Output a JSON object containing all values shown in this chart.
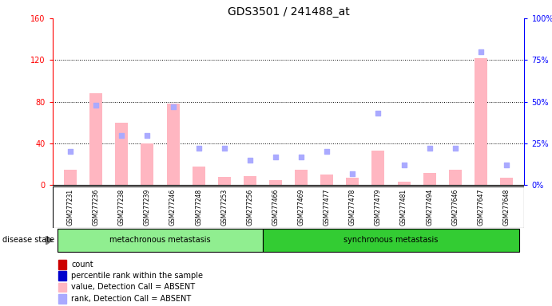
{
  "title": "GDS3501 / 241488_at",
  "samples": [
    "GSM277231",
    "GSM277236",
    "GSM277238",
    "GSM277239",
    "GSM277246",
    "GSM277248",
    "GSM277253",
    "GSM277256",
    "GSM277466",
    "GSM277469",
    "GSM277477",
    "GSM277478",
    "GSM277479",
    "GSM277481",
    "GSM277494",
    "GSM277646",
    "GSM277647",
    "GSM277648"
  ],
  "values": [
    15,
    88,
    60,
    40,
    78,
    18,
    8,
    9,
    5,
    15,
    10,
    7,
    33,
    3,
    12,
    15,
    122,
    7
  ],
  "ranks_pct": [
    20,
    48,
    30,
    30,
    47,
    22,
    22,
    15,
    17,
    17,
    20,
    7,
    43,
    12,
    22,
    22,
    80,
    12
  ],
  "ylim_left": [
    0,
    160
  ],
  "ylim_right": [
    0,
    100
  ],
  "yticks_left": [
    0,
    40,
    80,
    120,
    160
  ],
  "yticks_right": [
    0,
    25,
    50,
    75,
    100
  ],
  "ytick_labels_left": [
    "0",
    "40",
    "80",
    "120",
    "160"
  ],
  "ytick_labels_right": [
    "0%",
    "25%",
    "50%",
    "75%",
    "100%"
  ],
  "groups": [
    {
      "label": "metachronous metastasis",
      "start": 0,
      "end": 8,
      "color": "#90ee90"
    },
    {
      "label": "synchronous metastasis",
      "start": 8,
      "end": 18,
      "color": "#33cc33"
    }
  ],
  "bar_color_value": "#ffb6c1",
  "marker_color_rank": "#aaaaff",
  "bar_width": 0.5,
  "legend_items": [
    {
      "label": "count",
      "color": "#cc0000"
    },
    {
      "label": "percentile rank within the sample",
      "color": "#0000cc"
    },
    {
      "label": "value, Detection Call = ABSENT",
      "color": "#ffb6c1"
    },
    {
      "label": "rank, Detection Call = ABSENT",
      "color": "#aaaaff"
    }
  ],
  "disease_state_label": "disease state",
  "sample_bg_color": "#cccccc",
  "title_fontsize": 10,
  "tick_fontsize": 7,
  "label_fontsize": 7
}
